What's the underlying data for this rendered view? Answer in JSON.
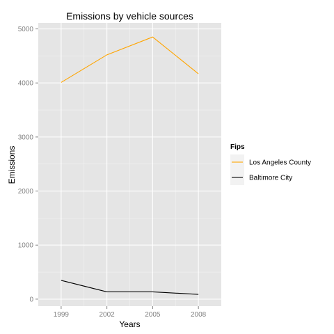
{
  "chart_data": {
    "type": "line",
    "title": "Emissions by vehicle sources",
    "xlabel": "Years",
    "ylabel": "Emissions",
    "x": [
      1999,
      2002,
      2005,
      2008
    ],
    "x_tick_labels": [
      "1999",
      "2002",
      "2005",
      "2008"
    ],
    "y_ticks": [
      0,
      1000,
      2000,
      3000,
      4000,
      5000
    ],
    "y_tick_labels": [
      "0",
      "1000",
      "2000",
      "3000",
      "4000",
      "5000"
    ],
    "xlim": [
      1997.5,
      2009.5
    ],
    "ylim": [
      -130,
      5110
    ],
    "grid": true,
    "legend_position": "right",
    "legend_title": "Fips",
    "series": [
      {
        "name": "Los Angeles County",
        "color": "#FFA500",
        "values": [
          4010,
          4520,
          4850,
          4170
        ]
      },
      {
        "name": "Baltimore City",
        "color": "#000000",
        "values": [
          347,
          135,
          135,
          88
        ]
      }
    ],
    "panel_color": "#e5e5e5",
    "grid_color": "#ffffff",
    "minor_grid_color": "#f2f2f2"
  }
}
